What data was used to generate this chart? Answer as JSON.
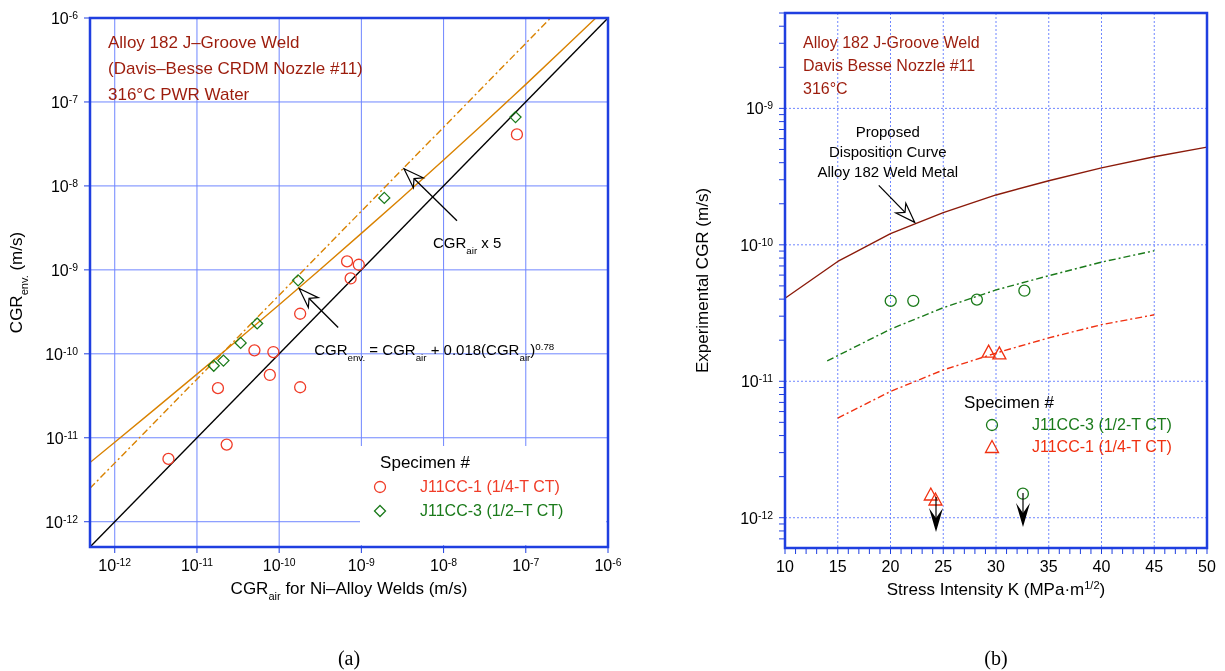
{
  "chart_data": [
    {
      "type": "scatter",
      "title": "Alloy 182 J–Groove Weld\n(Davis–Besse CRDM Nozzle #11)\n316°C PWR Water",
      "xlabel": "CGR$_{air}$ for Ni–Alloy Welds (m/s)",
      "ylabel": "CGR$_{env.}$ (m/s)",
      "legend_title": "Specimen #",
      "legend": "bottom right",
      "grid": true,
      "log": "xy",
      "xlim": [
        5e-13,
        1e-06
      ],
      "ylim": [
        5e-13,
        1e-06
      ],
      "xticks": [
        {
          "value": 1e-12,
          "label": "10$^{-12}$"
        },
        {
          "value": 1e-11,
          "label": "10$^{-11}$"
        },
        {
          "value": 1e-10,
          "label": "10$^{-10}$"
        },
        {
          "value": 1e-09,
          "label": "10$^{-9}$"
        },
        {
          "value": 1e-08,
          "label": "10$^{-8}$"
        },
        {
          "value": 1e-07,
          "label": "10$^{-7}$"
        },
        {
          "value": 1e-06,
          "label": "10$^{-6}$"
        }
      ],
      "yticks": [
        {
          "value": 1e-12,
          "label": "10$^{-12}$"
        },
        {
          "value": 1e-11,
          "label": "10$^{-11}$"
        },
        {
          "value": 1e-10,
          "label": "10$^{-10}$"
        },
        {
          "value": 1e-09,
          "label": "10$^{-9}$"
        },
        {
          "value": 1e-08,
          "label": "10$^{-8}$"
        },
        {
          "value": 1e-07,
          "label": "10$^{-7}$"
        },
        {
          "value": 1e-06,
          "label": "10$^{-6}$"
        }
      ],
      "series": [
        {
          "type": "line",
          "color": "#000000",
          "line_style": "solid",
          "x": [
            5e-13,
            1e-06
          ],
          "values": [
            5e-13,
            1e-06
          ]
        },
        {
          "type": "line",
          "color": "#d98200",
          "line_style": "solid",
          "x": [
            5e-13,
            1e-12,
            3e-12,
            1e-11,
            3e-11,
            1e-10,
            3e-10,
            1e-09,
            3e-09,
            1e-08,
            3e-08,
            1e-07,
            3e-07,
            7e-07
          ],
          "values": [
            5.07e-12,
            8.86e-12,
            2.15e-11,
            5.73e-11,
            1.41e-10,
            3.85e-10,
            9.7e-10,
            2.72e-09,
            7.05e-09,
            2.04e-08,
            5.44e-08,
            1.62e-07,
            4.47e-07,
            9.85e-07
          ]
        },
        {
          "type": "line",
          "color": "#d98200",
          "line_style": "dashed",
          "x": [
            5e-13,
            2e-07
          ],
          "values": [
            2.5e-12,
            1e-06
          ]
        },
        {
          "type": "scatter",
          "name": "J11CC-1 (1/4-T CT)",
          "color": "#f03c28",
          "marker": "circle",
          "x": [
            4.5e-12,
            2.3e-11,
            1.8e-11,
            5e-11,
            8.5e-11,
            7.7e-11,
            1.8e-10,
            1.8e-10,
            6.7e-10,
            9.3e-10,
            7.4e-10,
            7.8e-08
          ],
          "values": [
            5.6e-12,
            8.3e-12,
            3.9e-11,
            1.1e-10,
            1.05e-10,
            5.6e-11,
            4e-11,
            3e-10,
            1.26e-09,
            1.15e-09,
            7.9e-10,
            4.1e-08
          ]
        },
        {
          "type": "scatter",
          "name": "J11CC-3 (1/2–T CT)",
          "color": "#1a7a1a",
          "marker": "diamond",
          "x": [
            1.6e-11,
            2.1e-11,
            3.4e-11,
            5.4e-11,
            1.7e-10,
            1.9e-09,
            7.5e-08
          ],
          "values": [
            7.2e-11,
            8.3e-11,
            1.35e-10,
            2.3e-10,
            7.5e-10,
            7.2e-09,
            6.6e-08
          ]
        }
      ],
      "annotations": [
        {
          "text": "CGR$_{air}$ x 5",
          "x": 3.3e-09,
          "y": 1.6e-08
        },
        {
          "text": "CGR$_{env.}$ = CGR$_{air}$ + 0.018(CGR$_{air}$)$^{0.78}$",
          "x": 1.75e-10,
          "y": 6e-10
        },
        "(a)"
      ]
    },
    {
      "type": "scatter",
      "title": "Alloy 182 J-Groove Weld\nDavis Besse Nozzle #11\n316°C",
      "xlabel": "Stress Intensity K (MPa·m$^{1/2}$)",
      "ylabel": "Experimental CGR (m/s)",
      "legend_title": "Specimen #",
      "legend": "bottom right",
      "grid": true,
      "log": "y",
      "xlim": [
        10,
        50
      ],
      "ylim": [
        6e-13,
        5e-09
      ],
      "xticks": [
        10,
        {
          "value": 11,
          "label": null
        },
        {
          "value": 12,
          "label": null
        },
        {
          "value": 13,
          "label": null
        },
        {
          "value": 14,
          "label": null
        },
        15,
        {
          "value": 16,
          "label": null
        },
        {
          "value": 17,
          "label": null
        },
        {
          "value": 18,
          "label": null
        },
        {
          "value": 19,
          "label": null
        },
        20,
        {
          "value": 21,
          "label": null
        },
        {
          "value": 22,
          "label": null
        },
        {
          "value": 23,
          "label": null
        },
        {
          "value": 24,
          "label": null
        },
        25,
        {
          "value": 26,
          "label": null
        },
        {
          "value": 27,
          "label": null
        },
        {
          "value": 28,
          "label": null
        },
        {
          "value": 29,
          "label": null
        },
        30,
        {
          "value": 31,
          "label": null
        },
        {
          "value": 32,
          "label": null
        },
        {
          "value": 33,
          "label": null
        },
        {
          "value": 34,
          "label": null
        },
        35,
        {
          "value": 36,
          "label": null
        },
        {
          "value": 37,
          "label": null
        },
        {
          "value": 38,
          "label": null
        },
        {
          "value": 39,
          "label": null
        },
        40,
        {
          "value": 41,
          "label": null
        },
        {
          "value": 42,
          "label": null
        },
        {
          "value": 43,
          "label": null
        },
        {
          "value": 44,
          "label": null
        },
        45,
        {
          "value": 46,
          "label": null
        },
        {
          "value": 47,
          "label": null
        },
        {
          "value": 48,
          "label": null
        },
        {
          "value": 49,
          "label": null
        },
        50
      ],
      "yticks": [
        {
          "value": 7e-13,
          "label": null
        },
        {
          "value": 8e-13,
          "label": null
        },
        {
          "value": 9e-13,
          "label": null
        },
        {
          "value": 1e-12,
          "label": "10$^{-12}$"
        },
        {
          "value": 2e-12,
          "label": null
        },
        {
          "value": 3e-12,
          "label": null
        },
        {
          "value": 4e-12,
          "label": null
        },
        {
          "value": 5e-12,
          "label": null
        },
        {
          "value": 6e-12,
          "label": null
        },
        {
          "value": 7e-12,
          "label": null
        },
        {
          "value": 8e-12,
          "label": null
        },
        {
          "value": 9e-12,
          "label": null
        },
        {
          "value": 1e-11,
          "label": "10$^{-11}$"
        },
        {
          "value": 2e-11,
          "label": null
        },
        {
          "value": 3e-11,
          "label": null
        },
        {
          "value": 4e-11,
          "label": null
        },
        {
          "value": 5e-11,
          "label": null
        },
        {
          "value": 6e-11,
          "label": null
        },
        {
          "value": 7e-11,
          "label": null
        },
        {
          "value": 8e-11,
          "label": null
        },
        {
          "value": 9e-11,
          "label": null
        },
        {
          "value": 1e-10,
          "label": "10$^{-10}$"
        },
        {
          "value": 2e-10,
          "label": null
        },
        {
          "value": 3e-10,
          "label": null
        },
        {
          "value": 4e-10,
          "label": null
        },
        {
          "value": 5e-10,
          "label": null
        },
        {
          "value": 6e-10,
          "label": null
        },
        {
          "value": 7e-10,
          "label": null
        },
        {
          "value": 8e-10,
          "label": null
        },
        {
          "value": 9e-10,
          "label": null
        },
        {
          "value": 1e-09,
          "label": "10$^{-9}$"
        },
        {
          "value": 2e-09,
          "label": null
        },
        {
          "value": 3e-09,
          "label": null
        },
        {
          "value": 4e-09,
          "label": null
        },
        {
          "value": 5e-09,
          "label": null
        }
      ],
      "series": [
        {
          "type": "line",
          "color": "#8b1a0a",
          "line_style": "solid",
          "x": [
            10,
            15,
            20,
            25,
            30,
            35,
            40,
            45,
            50
          ],
          "values": [
            4.06e-11,
            7.55e-11,
            1.21e-10,
            1.72e-10,
            2.32e-10,
            2.95e-10,
            3.66e-10,
            4.42e-10,
            5.2e-10
          ]
        },
        {
          "type": "line",
          "color": "#1a7a1a",
          "line_style": "dashed",
          "x": [
            14,
            20,
            25,
            30,
            35,
            40,
            45
          ],
          "values": [
            1.41e-11,
            2.41e-11,
            3.46e-11,
            4.67e-11,
            5.94e-11,
            7.47e-11,
            9.04e-11
          ]
        },
        {
          "type": "line",
          "color": "#f03010",
          "line_style": "dashed",
          "x": [
            15,
            20,
            25,
            30,
            35,
            40,
            45
          ],
          "values": [
            5.37e-12,
            8.43e-12,
            1.21e-11,
            1.61e-11,
            2.08e-11,
            2.6e-11,
            3.07e-11
          ]
        },
        {
          "type": "scatter",
          "name": "J11CC-3 (1/2-T CT)",
          "color": "#1a7a1a",
          "marker": "circle",
          "x": [
            20.02,
            22.16,
            28.19,
            32.69,
            32.55
          ],
          "values": [
            3.88e-11,
            3.89e-11,
            3.97e-11,
            4.61e-11,
            1.5e-12
          ]
        },
        {
          "type": "scatter",
          "name": "J11CC-1 (1/4-T CT)",
          "color": "#f03010",
          "marker": "triangle",
          "x": [
            29.3,
            30.32,
            23.82,
            24.26
          ],
          "values": [
            1.65e-11,
            1.6e-11,
            1.48e-12,
            1.36e-12
          ]
        }
      ],
      "annotations": [
        {
          "text": "Proposed\nDisposition Curve\nAlloy 182 Weld Metal",
          "x": 22.3,
          "y": 1.46e-10
        },
        "(b)"
      ]
    }
  ]
}
